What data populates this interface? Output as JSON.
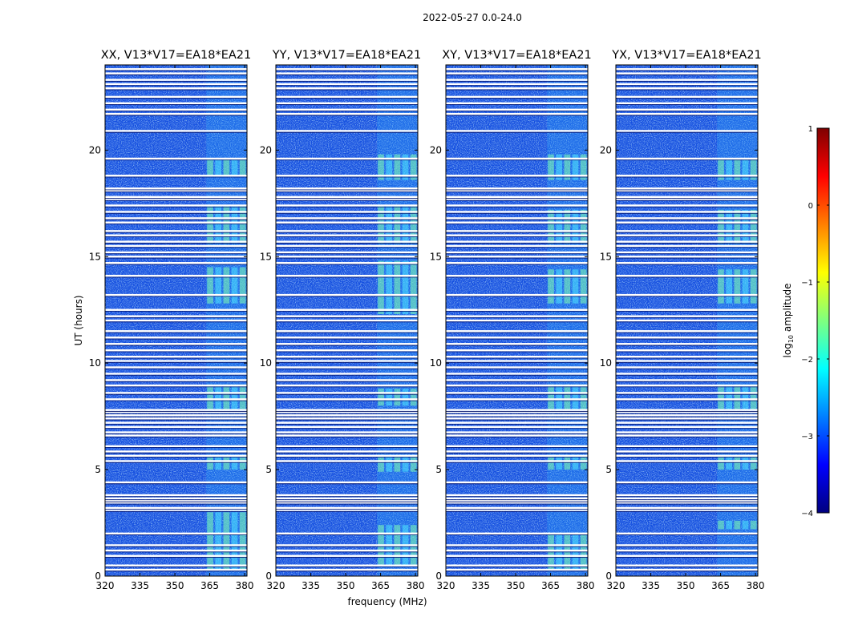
{
  "chart_data": {
    "type": "heatmap",
    "suptitle": "2022-05-27 0.0-24.0",
    "xlabel": "frequency (MHz)",
    "ylabel": "UT (hours)",
    "xlim": [
      320,
      381
    ],
    "ylim": [
      0,
      24
    ],
    "xticks": [
      320,
      335,
      350,
      365,
      380
    ],
    "yticks": [
      0,
      5,
      10,
      15,
      20
    ],
    "panels": [
      {
        "title": "XX, V13*V17=EA18*EA21",
        "bright_bands_hours": [
          [
            0.3,
            3.0
          ],
          [
            5.0,
            5.6
          ],
          [
            7.8,
            9.0
          ],
          [
            12.8,
            14.5
          ],
          [
            15.6,
            17.4
          ],
          [
            18.8,
            19.6
          ]
        ]
      },
      {
        "title": "YY, V13*V17=EA18*EA21",
        "bright_bands_hours": [
          [
            0.5,
            2.4
          ],
          [
            4.9,
            5.6
          ],
          [
            8.0,
            8.8
          ],
          [
            12.3,
            14.8
          ],
          [
            15.6,
            17.4
          ],
          [
            18.6,
            19.8
          ]
        ]
      },
      {
        "title": "XY, V13*V17=EA18*EA21",
        "bright_bands_hours": [
          [
            0.3,
            2.0
          ],
          [
            5.0,
            5.6
          ],
          [
            7.8,
            9.0
          ],
          [
            12.8,
            14.4
          ],
          [
            15.6,
            17.2
          ],
          [
            18.6,
            19.8
          ]
        ]
      },
      {
        "title": "YX, V13*V17=EA18*EA21",
        "bright_bands_hours": [
          [
            2.2,
            2.6
          ],
          [
            5.0,
            5.6
          ],
          [
            7.8,
            9.0
          ],
          [
            12.8,
            14.4
          ],
          [
            15.6,
            17.2
          ],
          [
            18.6,
            19.6
          ]
        ]
      }
    ],
    "rfi_band_mhz": [
      363.5,
      381
    ],
    "flagged_hours": [
      0.3,
      0.5,
      0.95,
      1.2,
      1.45,
      2.0,
      3.1,
      3.2,
      3.45,
      3.55,
      3.65,
      3.8,
      4.4,
      5.4,
      5.65,
      5.85,
      6.1,
      6.6,
      6.75,
      7.0,
      7.2,
      7.4,
      7.55,
      7.7,
      7.8,
      8.3,
      8.6,
      8.95,
      9.2,
      9.5,
      9.8,
      10.1,
      10.3,
      10.6,
      10.9,
      11.2,
      11.5,
      12.0,
      12.2,
      12.5,
      13.2,
      14.1,
      14.7,
      15.0,
      15.2,
      15.5,
      15.7,
      16.0,
      16.2,
      16.6,
      16.8,
      17.1,
      17.4,
      17.7,
      17.8,
      18.1,
      18.2,
      18.8,
      19.6,
      20.9,
      21.7,
      21.9,
      22.2,
      22.5,
      22.9,
      23.1,
      23.3,
      23.6,
      23.8
    ],
    "colorbar": {
      "label": "log10 amplitude",
      "label_base": "log",
      "label_sub": "10",
      "label_rest": " amplitude",
      "range": [
        -4,
        1
      ],
      "ticks": [
        "1",
        "0",
        "−1",
        "−2",
        "−3",
        "−4"
      ],
      "colormap": "jet"
    }
  }
}
